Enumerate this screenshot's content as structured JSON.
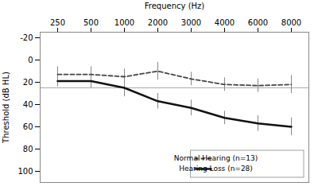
{
  "chart_data": {
    "type": "line",
    "xlabel": "Frequency (Hz)",
    "ylabel": "Threshold (dB HL)",
    "categories": [
      "250",
      "500",
      "1000",
      "2000",
      "3000",
      "4000",
      "6000",
      "8000"
    ],
    "ylim": [
      110,
      -25
    ],
    "yticks": [
      -20,
      0,
      20,
      40,
      60,
      80,
      100
    ],
    "grid": false,
    "legend": "lower right",
    "series": [
      {
        "name": "Normal Hearing (n=13)",
        "color": "#444444",
        "line_style": "dashed",
        "values": [
          13,
          13,
          15,
          10,
          17,
          22,
          23,
          22
        ],
        "errors": [
          7,
          7,
          7,
          8,
          6,
          6,
          6,
          8
        ],
        "error_color": "#888888"
      },
      {
        "name": "Hearing Loss (n=28)",
        "color": "#111111",
        "line_style": "solid",
        "values": [
          19,
          19,
          25,
          37,
          43,
          52,
          57,
          60
        ],
        "errors": [
          5,
          6,
          8,
          7,
          7,
          6,
          7,
          8
        ],
        "error_color": "#888888"
      }
    ],
    "reference_line": {
      "y": 25,
      "color": "#aaaaaa"
    }
  }
}
